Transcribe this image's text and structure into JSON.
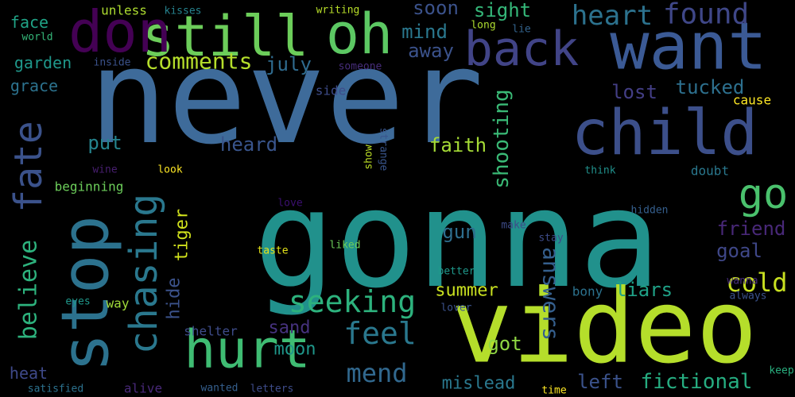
{
  "words": [
    {
      "text": "never",
      "color": "#3e6b9a"
    },
    {
      "text": "gonna",
      "color": "#21918c"
    },
    {
      "text": "video",
      "color": "#b5de2b"
    },
    {
      "text": "want",
      "color": "#3b5a95"
    },
    {
      "text": "stop",
      "color": "#2c728e"
    },
    {
      "text": "still",
      "color": "#6ccd5a"
    },
    {
      "text": "oh",
      "color": "#5cc863"
    },
    {
      "text": "child",
      "color": "#3c4f8a"
    },
    {
      "text": "don",
      "color": "#440154"
    },
    {
      "text": "back",
      "color": "#414487"
    },
    {
      "text": "hurt",
      "color": "#3fbc73"
    },
    {
      "text": "chasing",
      "color": "#2a788e"
    },
    {
      "text": "fate",
      "color": "#3b528b"
    },
    {
      "text": "believe",
      "color": "#2db27d"
    },
    {
      "text": "seeking",
      "color": "#2db27d"
    },
    {
      "text": "go",
      "color": "#4ac16d"
    },
    {
      "text": "found",
      "color": "#3f4788"
    },
    {
      "text": "heart",
      "color": "#2c728e"
    },
    {
      "text": "feel",
      "color": "#2a788e"
    },
    {
      "text": "mend",
      "color": "#31688e"
    },
    {
      "text": "comments",
      "color": "#b5de2b"
    },
    {
      "text": "cold",
      "color": "#c8e020"
    },
    {
      "text": "answers",
      "color": "#355f8d"
    },
    {
      "text": "shooting",
      "color": "#3aba76"
    },
    {
      "text": "faith",
      "color": "#a5db36"
    },
    {
      "text": "fictional",
      "color": "#26ad81"
    },
    {
      "text": "soon",
      "color": "#3b528b"
    },
    {
      "text": "sight",
      "color": "#35b779"
    },
    {
      "text": "mind",
      "color": "#2a788e"
    },
    {
      "text": "away",
      "color": "#3b528b"
    },
    {
      "text": "july",
      "color": "#2f6b8e"
    },
    {
      "text": "lost",
      "color": "#433e85"
    },
    {
      "text": "tucked",
      "color": "#2d708e"
    },
    {
      "text": "heard",
      "color": "#39558c"
    },
    {
      "text": "put",
      "color": "#25848e"
    },
    {
      "text": "tiger",
      "color": "#d0e11c"
    },
    {
      "text": "hide",
      "color": "#3b528b"
    },
    {
      "text": "gun",
      "color": "#2e6e8e"
    },
    {
      "text": "friend",
      "color": "#482878"
    },
    {
      "text": "goal",
      "color": "#3f4788"
    },
    {
      "text": "summer",
      "color": "#c8e020"
    },
    {
      "text": "liars",
      "color": "#1fa187"
    },
    {
      "text": "sand",
      "color": "#46327e"
    },
    {
      "text": "moon",
      "color": "#1f988b"
    },
    {
      "text": "got",
      "color": "#90d743"
    },
    {
      "text": "left",
      "color": "#3b528b"
    },
    {
      "text": "mislead",
      "color": "#2a788e"
    },
    {
      "text": "bony",
      "color": "#2c728e"
    },
    {
      "text": "face",
      "color": "#20a386"
    },
    {
      "text": "garden",
      "color": "#1f988b"
    },
    {
      "text": "grace",
      "color": "#2c728e"
    },
    {
      "text": "heat",
      "color": "#3e4989"
    },
    {
      "text": "way",
      "color": "#a0da39"
    },
    {
      "text": "unless",
      "color": "#addc30"
    },
    {
      "text": "kisses",
      "color": "#26828e"
    },
    {
      "text": "writing",
      "color": "#b8de29"
    },
    {
      "text": "world",
      "color": "#35b779"
    },
    {
      "text": "inside",
      "color": "#3b528b"
    },
    {
      "text": "someone",
      "color": "#472d7b"
    },
    {
      "text": "side",
      "color": "#3e4c8a"
    },
    {
      "text": "long",
      "color": "#addc30"
    },
    {
      "text": "lie",
      "color": "#33638d"
    },
    {
      "text": "cause",
      "color": "#fde725"
    },
    {
      "text": "beginning",
      "color": "#6ccd5a"
    },
    {
      "text": "wine",
      "color": "#481f70"
    },
    {
      "text": "look",
      "color": "#fde725"
    },
    {
      "text": "show",
      "color": "#bddf26"
    },
    {
      "text": "strange",
      "color": "#39558c"
    },
    {
      "text": "think",
      "color": "#21918c"
    },
    {
      "text": "doubt",
      "color": "#2a788e"
    },
    {
      "text": "love",
      "color": "#3b0f70"
    },
    {
      "text": "hidden",
      "color": "#355f8d"
    },
    {
      "text": "make",
      "color": "#3e4c8a"
    },
    {
      "text": "stay",
      "color": "#3e4c8a"
    },
    {
      "text": "liked",
      "color": "#6ccd5a"
    },
    {
      "text": "taste",
      "color": "#e5e419"
    },
    {
      "text": "better",
      "color": "#1f988b"
    },
    {
      "text": "wanna",
      "color": "#472d7b"
    },
    {
      "text": "always",
      "color": "#3b528b"
    },
    {
      "text": "lover",
      "color": "#3b528b"
    },
    {
      "text": "eyes",
      "color": "#1f988b"
    },
    {
      "text": "shelter",
      "color": "#3e4c8a"
    },
    {
      "text": "satisfied",
      "color": "#2c728e"
    },
    {
      "text": "alive",
      "color": "#482878"
    },
    {
      "text": "wanted",
      "color": "#355f8d"
    },
    {
      "text": "letters",
      "color": "#3e4c8a"
    },
    {
      "text": "time",
      "color": "#fde725"
    },
    {
      "text": "keep",
      "color": "#29af7f"
    }
  ]
}
